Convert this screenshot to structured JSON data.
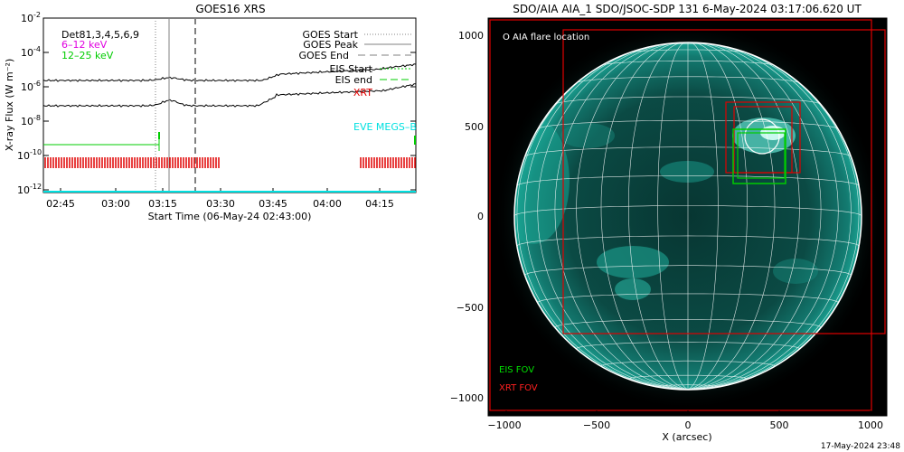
{
  "left_panel": {
    "title": "GOES16 XRS",
    "ylabel": "X-ray Flux (W m⁻²)",
    "xlabel": "Start Time (06-May-24 02:43:00)",
    "yticks": [
      {
        "label": "10",
        "exp": "-2"
      },
      {
        "label": "10",
        "exp": "-4"
      },
      {
        "label": "10",
        "exp": "-6"
      },
      {
        "label": "10",
        "exp": "-8"
      },
      {
        "label": "10",
        "exp": "-10"
      },
      {
        "label": "10",
        "exp": "-12"
      }
    ],
    "xticks": [
      "02:45",
      "03:00",
      "03:15",
      "03:30",
      "03:45",
      "04:00",
      "04:15"
    ],
    "channels": [
      {
        "text": "Det81,3,4,5,6,9",
        "color": "#000000"
      },
      {
        "text": "6–12 keV",
        "color": "#e000e0"
      },
      {
        "text": "12–25 keV",
        "color": "#00cc00"
      }
    ],
    "legend": [
      {
        "text": "GOES Start",
        "color": "#808080",
        "style": "dotted"
      },
      {
        "text": "GOES Peak",
        "color": "#808080",
        "style": "solid"
      },
      {
        "text": "GOES End",
        "color": "#808080",
        "style": "dashed"
      },
      {
        "text": "EIS Start",
        "color": "#00cc00",
        "style": "dotted"
      },
      {
        "text": "EIS end",
        "color": "#00cc00",
        "style": "dashed"
      },
      {
        "text": "XRT",
        "color": "#e00000",
        "style": "none"
      }
    ],
    "eve_label": "EVE MEGS–B"
  },
  "right_panel": {
    "title": "SDO/AIA AIA_1 SDO/JSOC-SDP 131  6-May-2024 03:17:06.620 UT",
    "flare_label": "O AIA flare location",
    "xlabel": "X (arcsec)",
    "xticks": [
      "−1000",
      "−500",
      "0",
      "500",
      "1000"
    ],
    "yticks": [
      "1000",
      "500",
      "0",
      "−500",
      "−1000"
    ],
    "eis_fov": "EIS FOV",
    "xrt_fov": "XRT FOV"
  },
  "footer": {
    "timestamp": "17-May-2024 23:48"
  },
  "colors": {
    "goes_long": "#000000",
    "eis": "#00cc00",
    "xrt": "#e00000",
    "eve": "#00e0e0",
    "sun_limb": "#ffffff"
  }
}
